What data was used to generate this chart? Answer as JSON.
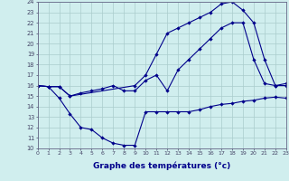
{
  "xlabel": "Graphe des températures (°c)",
  "bg_color": "#d0eeee",
  "line_color": "#00008b",
  "grid_color": "#aacccc",
  "xlim": [
    0,
    23
  ],
  "ylim": [
    10,
    24
  ],
  "xticks": [
    0,
    1,
    2,
    3,
    4,
    5,
    6,
    7,
    8,
    9,
    10,
    11,
    12,
    13,
    14,
    15,
    16,
    17,
    18,
    19,
    20,
    21,
    22,
    23
  ],
  "yticks": [
    10,
    11,
    12,
    13,
    14,
    15,
    16,
    17,
    18,
    19,
    20,
    21,
    22,
    23,
    24
  ],
  "line1_x": [
    0,
    1,
    2,
    3,
    4,
    5,
    6,
    7,
    8,
    9,
    10,
    11,
    12,
    13,
    14,
    15,
    16,
    17,
    18,
    19,
    20,
    21,
    22,
    23
  ],
  "line1_y": [
    16.0,
    15.9,
    14.8,
    13.3,
    12.0,
    11.8,
    11.0,
    10.5,
    10.3,
    10.3,
    13.5,
    13.5,
    13.5,
    13.5,
    13.5,
    13.7,
    14.0,
    14.2,
    14.3,
    14.5,
    14.6,
    14.8,
    14.9,
    14.8
  ],
  "line2_x": [
    0,
    1,
    2,
    3,
    4,
    5,
    6,
    7,
    8,
    9,
    10,
    11,
    12,
    13,
    14,
    15,
    16,
    17,
    18,
    19,
    20,
    21,
    22,
    23
  ],
  "line2_y": [
    16.0,
    15.9,
    15.9,
    15.0,
    15.3,
    15.5,
    15.7,
    16.0,
    15.5,
    15.5,
    16.5,
    17.0,
    15.5,
    17.5,
    18.5,
    19.5,
    20.5,
    21.5,
    22.0,
    22.0,
    18.5,
    16.2,
    16.0,
    16.0
  ],
  "line3_x": [
    0,
    1,
    2,
    3,
    9,
    10,
    11,
    12,
    13,
    14,
    15,
    16,
    17,
    18,
    19,
    20,
    21,
    22,
    23
  ],
  "line3_y": [
    16.0,
    15.9,
    15.9,
    15.0,
    16.0,
    17.0,
    19.0,
    21.0,
    21.5,
    22.0,
    22.5,
    23.0,
    23.8,
    24.0,
    23.2,
    22.0,
    18.5,
    16.0,
    16.2
  ]
}
